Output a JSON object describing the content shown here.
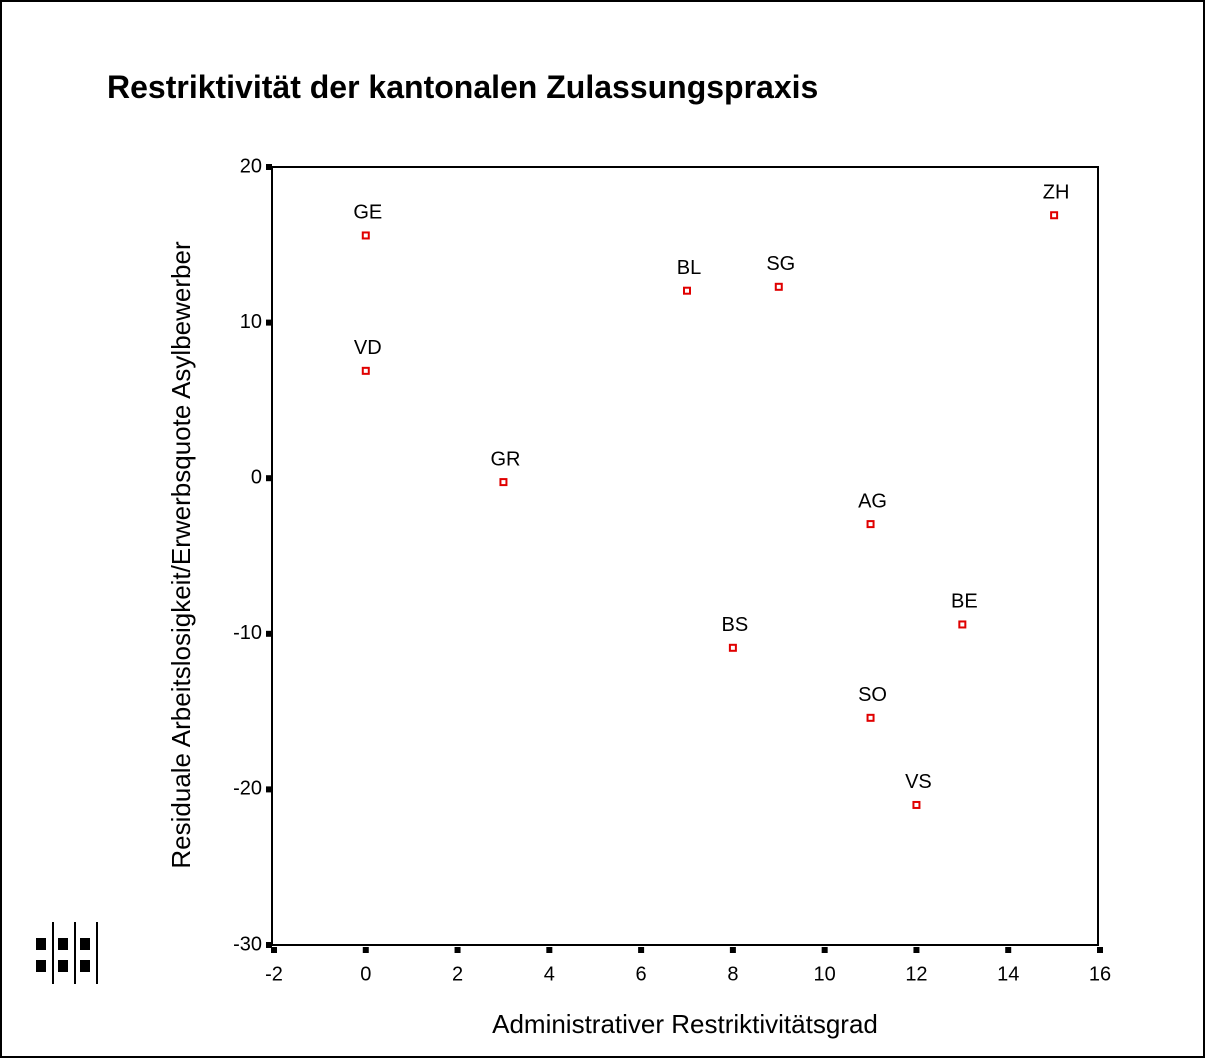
{
  "chart_data": {
    "type": "scatter",
    "title": "Restriktivität der kantonalen Zulassungspraxis",
    "x_label": "Administrativer Restriktivitätsgrad",
    "y_label": "Residuale Arbeitslosigkeit/Erwerbsquote Asylbewerber",
    "labels": [
      "GE",
      "VD",
      "GR",
      "BL",
      "SG",
      "ZH",
      "AG",
      "BE",
      "BS",
      "SO",
      "VS"
    ],
    "x": [
      0,
      0,
      3,
      7,
      9,
      15,
      11,
      13,
      8,
      11,
      12
    ],
    "values": [
      15.6,
      6.9,
      -0.25,
      12.05,
      12.3,
      16.9,
      -2.95,
      -9.4,
      -10.9,
      -15.4,
      -21.0
    ],
    "color": "#e00000",
    "xlim": [
      -2,
      16
    ],
    "xticks": [
      -2,
      0,
      2,
      4,
      6,
      8,
      10,
      12,
      14,
      16
    ],
    "ylim": [
      -30,
      20
    ],
    "yticks": [
      -30,
      -20,
      -10,
      0,
      10,
      20
    ],
    "grid": false
  }
}
